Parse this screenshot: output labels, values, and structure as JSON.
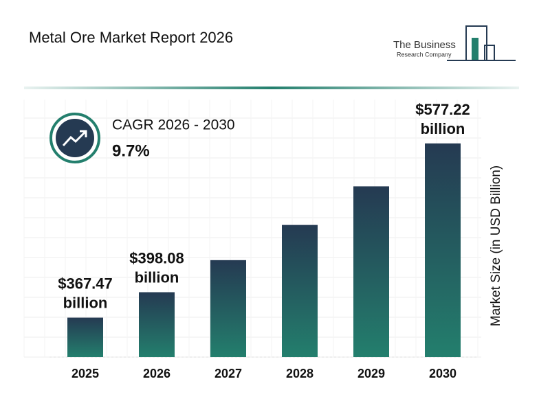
{
  "chart_data": {
    "type": "bar",
    "title": "Metal Ore Market Report 2026",
    "brand": "The Business",
    "brand_sub": "Research Company",
    "cagr_label": "CAGR 2026 - 2030",
    "cagr_value": "9.7%",
    "y_axis_label": "Market Size (in USD Billion)",
    "categories": [
      "2025",
      "2026",
      "2027",
      "2028",
      "2029",
      "2030"
    ],
    "values": [
      367.47,
      398.08,
      436.69,
      479.05,
      525.52,
      577.22
    ],
    "value_labels": [
      "$367.47 billion",
      "$398.08 billion",
      null,
      null,
      null,
      "$577.22 billion"
    ],
    "color_top": "#253a52",
    "color_bottom": "#237f6d",
    "ylim": [
      320,
      630
    ]
  }
}
